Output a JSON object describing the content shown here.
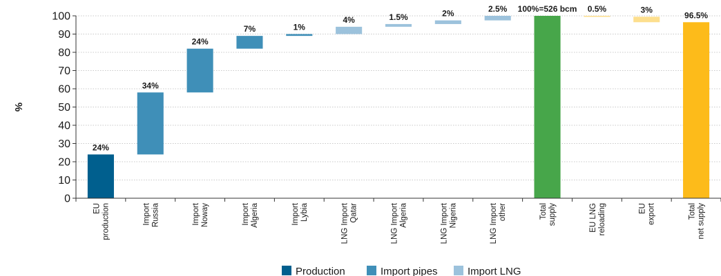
{
  "chart_data": {
    "type": "bar",
    "subtype": "waterfall",
    "ylabel": "%",
    "ylim": [
      0,
      100
    ],
    "yticks": [
      0,
      10,
      20,
      30,
      40,
      50,
      60,
      70,
      80,
      90,
      100
    ],
    "grid": true,
    "legend_placement": "bottom-center",
    "categories": [
      [
        "EU",
        "production"
      ],
      [
        "Import",
        "Russia"
      ],
      [
        "Import",
        "Noway"
      ],
      [
        "Import",
        "Algeria"
      ],
      [
        "Import",
        "Lybia"
      ],
      [
        "LNG Import",
        "Qatar"
      ],
      [
        "LNG Import",
        "Algeria"
      ],
      [
        "LNG Import",
        "Nigeria"
      ],
      [
        "LNG Import",
        "other"
      ],
      [
        "Total",
        "supply"
      ],
      [
        "EU LNG",
        "reloading"
      ],
      [
        "EU",
        "export"
      ],
      [
        "Total",
        "net supply"
      ]
    ],
    "bars": [
      {
        "base": 0,
        "top": 24,
        "label": "24%",
        "kind": "production"
      },
      {
        "base": 24,
        "top": 58,
        "label": "34%",
        "kind": "pipes"
      },
      {
        "base": 58,
        "top": 82,
        "label": "24%",
        "kind": "pipes"
      },
      {
        "base": 82,
        "top": 89,
        "label": "7%",
        "kind": "pipes"
      },
      {
        "base": 89,
        "top": 90,
        "label": "1%",
        "kind": "pipes"
      },
      {
        "base": 90,
        "top": 94,
        "label": "4%",
        "kind": "lng"
      },
      {
        "base": 94,
        "top": 95.5,
        "label": "1.5%",
        "kind": "lng"
      },
      {
        "base": 95.5,
        "top": 97.5,
        "label": "2%",
        "kind": "lng"
      },
      {
        "base": 97.5,
        "top": 100,
        "label": "2.5%",
        "kind": "lng"
      },
      {
        "base": 0,
        "top": 100,
        "label": "100%=526 bcm",
        "kind": "total"
      },
      {
        "base": 99.5,
        "top": 100,
        "label": "0.5%",
        "kind": "out"
      },
      {
        "base": 96.5,
        "top": 99.5,
        "label": "3%",
        "kind": "out"
      },
      {
        "base": 0,
        "top": 96.5,
        "label": "96.5%",
        "kind": "net"
      }
    ],
    "legend": [
      {
        "name": "Production",
        "kind": "production"
      },
      {
        "name": "Import pipes",
        "kind": "pipes"
      },
      {
        "name": "Import LNG",
        "kind": "lng"
      }
    ],
    "colors": {
      "production": "#005f8e",
      "pipes": "#3f8fb8",
      "lng": "#9cc2dc",
      "total": "#47a64a",
      "out": "#fddf8e",
      "net": "#fdbb1a"
    }
  }
}
